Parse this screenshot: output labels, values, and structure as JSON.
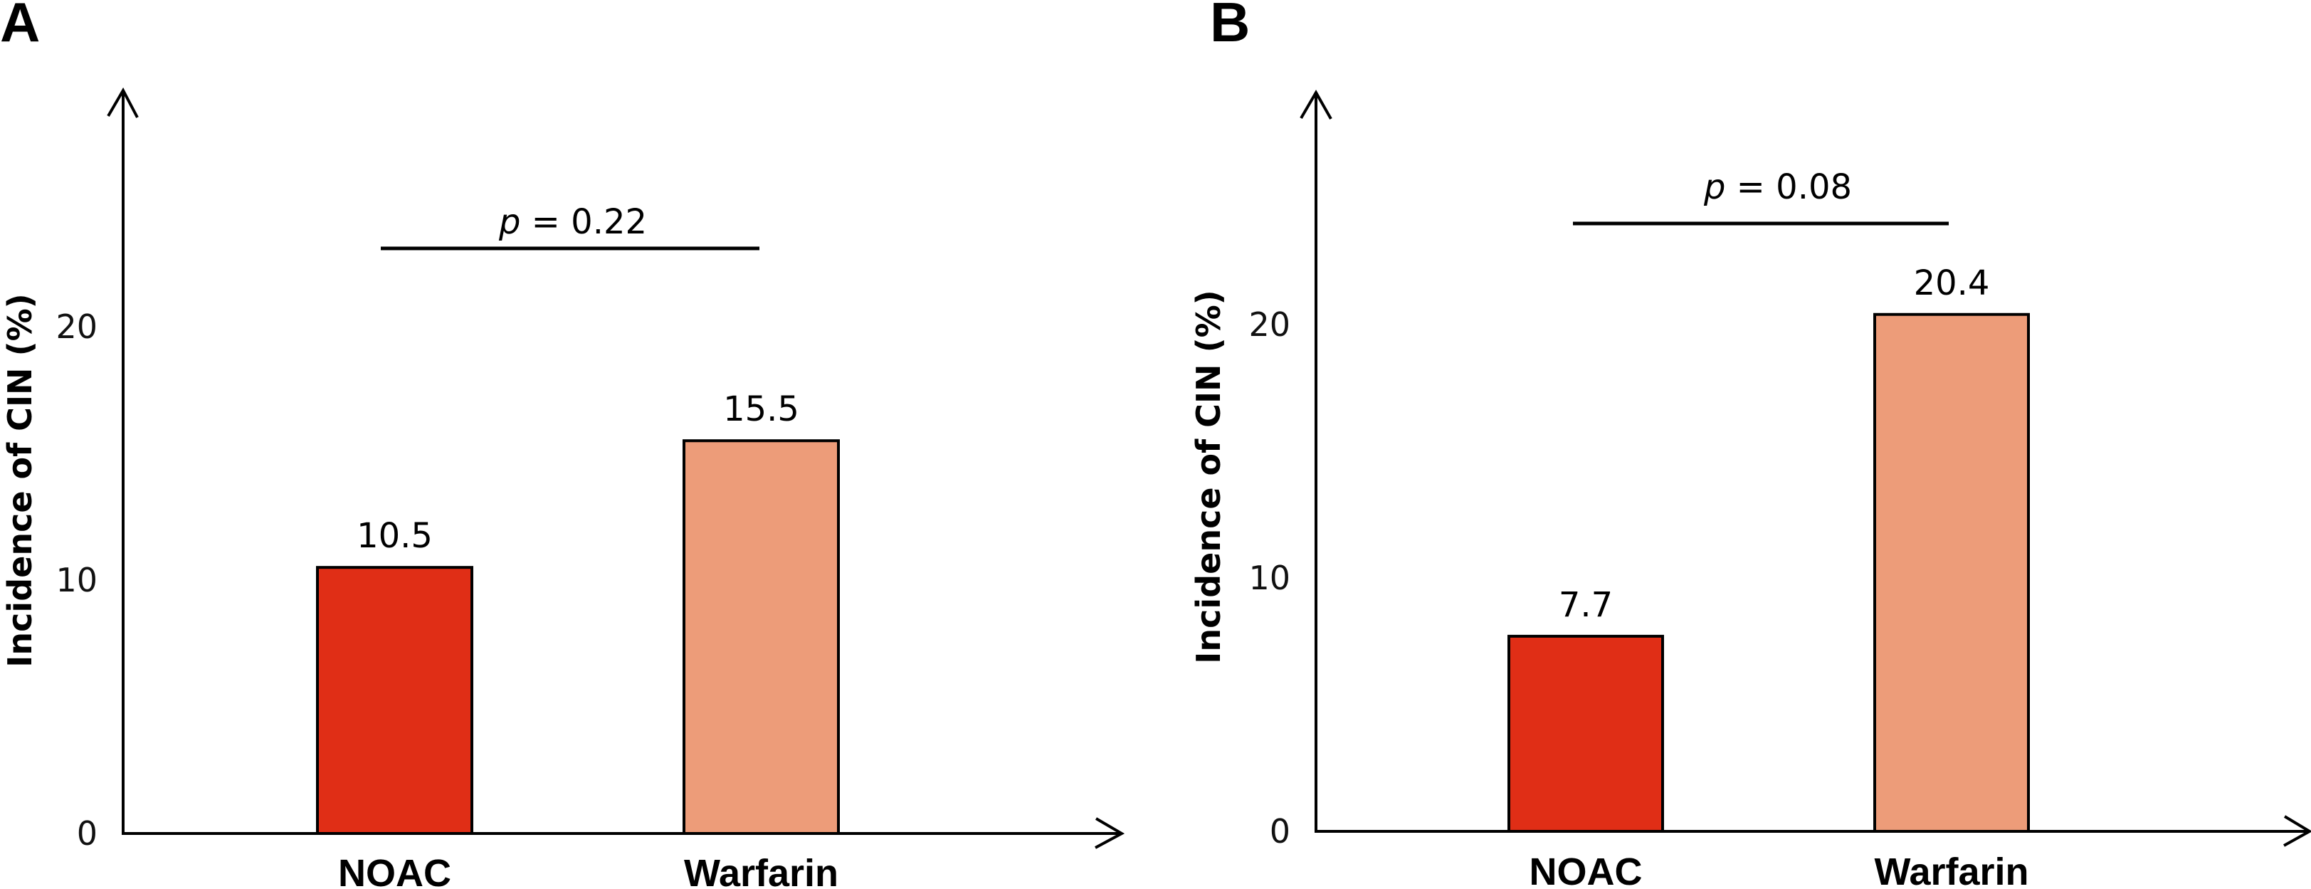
{
  "figure": {
    "colors": {
      "noac": "#E02E16",
      "warfarin": "#ED9C79",
      "axis": "#000000"
    }
  },
  "chart_data": [
    {
      "type": "bar",
      "panel": "A",
      "title": "",
      "xlabel": "",
      "ylabel": "Incidence of CIN (%)",
      "categories": [
        "NOAC",
        "Warfarin"
      ],
      "values": [
        10.5,
        15.5
      ],
      "value_labels": [
        "10.5",
        "15.5"
      ],
      "yticks": [
        0,
        10,
        20
      ],
      "ytick_labels": [
        "0",
        "10",
        "20"
      ],
      "ylim": [
        0,
        29
      ],
      "grid": false,
      "legend": "none",
      "annotation": {
        "prefix": "p",
        "text": " = 0.22",
        "p_value": 0.22,
        "spans": [
          "NOAC",
          "Warfarin"
        ]
      }
    },
    {
      "type": "bar",
      "panel": "B",
      "title": "",
      "xlabel": "",
      "ylabel": "Incidence of CIN (%)",
      "categories": [
        "NOAC",
        "Warfarin"
      ],
      "values": [
        7.7,
        20.4
      ],
      "value_labels": [
        "7.7",
        "20.4"
      ],
      "yticks": [
        0,
        10,
        20
      ],
      "ytick_labels": [
        "0",
        "10",
        "20"
      ],
      "ylim": [
        0,
        29
      ],
      "grid": false,
      "legend": "none",
      "annotation": {
        "prefix": "p",
        "text": " = 0.08",
        "p_value": 0.08,
        "spans": [
          "NOAC",
          "Warfarin"
        ]
      }
    }
  ]
}
